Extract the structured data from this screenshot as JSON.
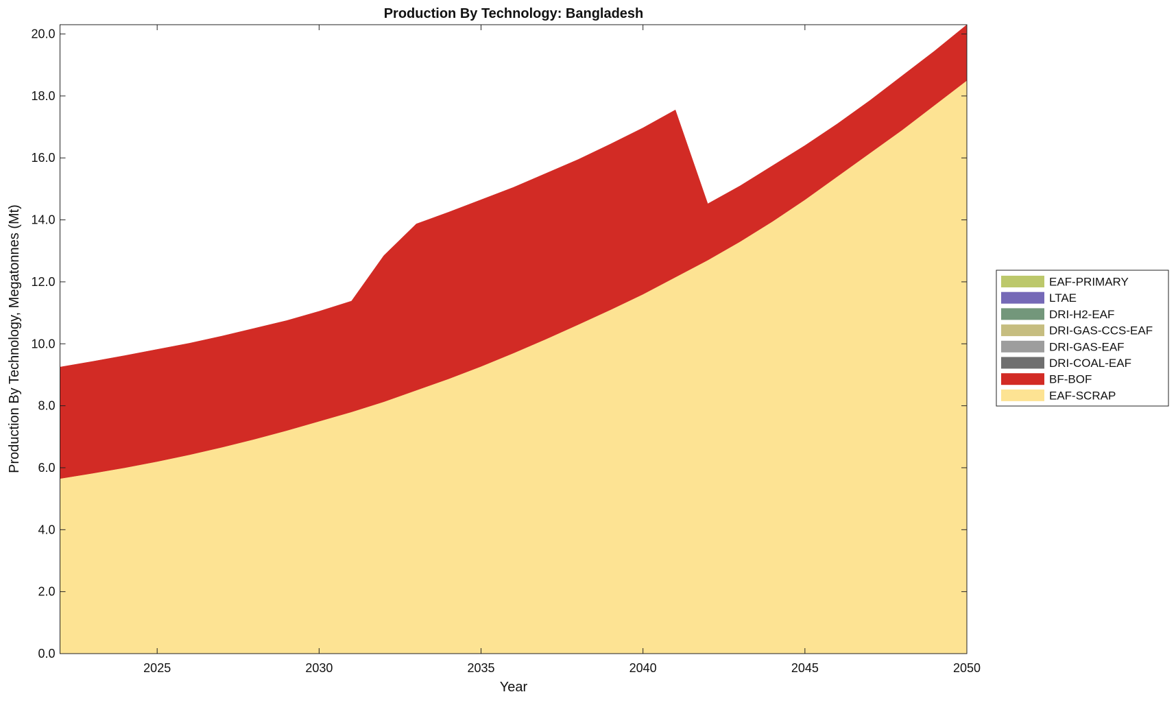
{
  "chart_data": {
    "type": "area",
    "stacked": true,
    "title": "Production By Technology: Bangladesh",
    "xlabel": "Year",
    "ylabel": "Production By Technology, Megatonnes (Mt)",
    "xlim": [
      2022,
      2050
    ],
    "ylim": [
      0,
      20.3
    ],
    "xticks": [
      2025,
      2030,
      2035,
      2040,
      2045,
      2050
    ],
    "yticks": [
      "0.0",
      "2.0",
      "4.0",
      "6.0",
      "8.0",
      "10.0",
      "12.0",
      "14.0",
      "16.0",
      "18.0",
      "20.0"
    ],
    "legend_position": "right",
    "x": [
      2022,
      2023,
      2024,
      2025,
      2026,
      2027,
      2028,
      2029,
      2030,
      2031,
      2032,
      2033,
      2034,
      2035,
      2036,
      2037,
      2038,
      2039,
      2040,
      2041,
      2042,
      2043,
      2044,
      2045,
      2046,
      2047,
      2048,
      2049,
      2050
    ],
    "series": [
      {
        "name": "EAF-SCRAP",
        "color": "#fde393",
        "values": [
          5.65,
          5.82,
          6.0,
          6.2,
          6.42,
          6.66,
          6.92,
          7.2,
          7.5,
          7.8,
          8.13,
          8.5,
          8.87,
          9.27,
          9.7,
          10.15,
          10.62,
          11.1,
          11.6,
          12.15,
          12.7,
          13.3,
          13.95,
          14.65,
          15.4,
          16.15,
          16.9,
          17.7,
          18.5
        ]
      },
      {
        "name": "BF-BOF",
        "color": "#d22b25",
        "values": [
          3.6,
          3.61,
          3.62,
          3.62,
          3.6,
          3.59,
          3.58,
          3.55,
          3.55,
          3.58,
          4.72,
          5.37,
          5.38,
          5.38,
          5.35,
          5.35,
          5.33,
          5.35,
          5.37,
          5.4,
          1.82,
          1.8,
          1.8,
          1.75,
          1.7,
          1.7,
          1.75,
          1.75,
          1.8
        ]
      },
      {
        "name": "DRI-COAL-EAF",
        "color": "#6f6f6f",
        "values": [
          0,
          0,
          0,
          0,
          0,
          0,
          0,
          0,
          0,
          0,
          0,
          0,
          0,
          0,
          0,
          0,
          0,
          0,
          0,
          0,
          0,
          0,
          0,
          0,
          0,
          0,
          0,
          0,
          0
        ]
      },
      {
        "name": "DRI-GAS-EAF",
        "color": "#9d9d9d",
        "values": [
          0,
          0,
          0,
          0,
          0,
          0,
          0,
          0,
          0,
          0,
          0,
          0,
          0,
          0,
          0,
          0,
          0,
          0,
          0,
          0,
          0,
          0,
          0,
          0,
          0,
          0,
          0,
          0,
          0
        ]
      },
      {
        "name": "DRI-GAS-CCS-EAF",
        "color": "#c6bd80",
        "values": [
          0,
          0,
          0,
          0,
          0,
          0,
          0,
          0,
          0,
          0,
          0,
          0,
          0,
          0,
          0,
          0,
          0,
          0,
          0,
          0,
          0,
          0,
          0,
          0,
          0,
          0,
          0,
          0,
          0
        ]
      },
      {
        "name": "DRI-H2-EAF",
        "color": "#73977b",
        "values": [
          0,
          0,
          0,
          0,
          0,
          0,
          0,
          0,
          0,
          0,
          0,
          0,
          0,
          0,
          0,
          0,
          0,
          0,
          0,
          0,
          0,
          0,
          0,
          0,
          0,
          0,
          0,
          0,
          0
        ]
      },
      {
        "name": "LTAE",
        "color": "#7569b7",
        "values": [
          0,
          0,
          0,
          0,
          0,
          0,
          0,
          0,
          0,
          0,
          0,
          0,
          0,
          0,
          0,
          0,
          0,
          0,
          0,
          0,
          0,
          0,
          0,
          0,
          0,
          0,
          0,
          0,
          0
        ]
      },
      {
        "name": "EAF-PRIMARY",
        "color": "#bcc86b",
        "values": [
          0,
          0,
          0,
          0,
          0,
          0,
          0,
          0,
          0,
          0,
          0,
          0,
          0,
          0,
          0,
          0,
          0,
          0,
          0,
          0,
          0,
          0,
          0,
          0,
          0,
          0,
          0,
          0,
          0
        ]
      }
    ],
    "legend_order": [
      "EAF-PRIMARY",
      "LTAE",
      "DRI-H2-EAF",
      "DRI-GAS-CCS-EAF",
      "DRI-GAS-EAF",
      "DRI-COAL-EAF",
      "BF-BOF",
      "EAF-SCRAP"
    ]
  }
}
